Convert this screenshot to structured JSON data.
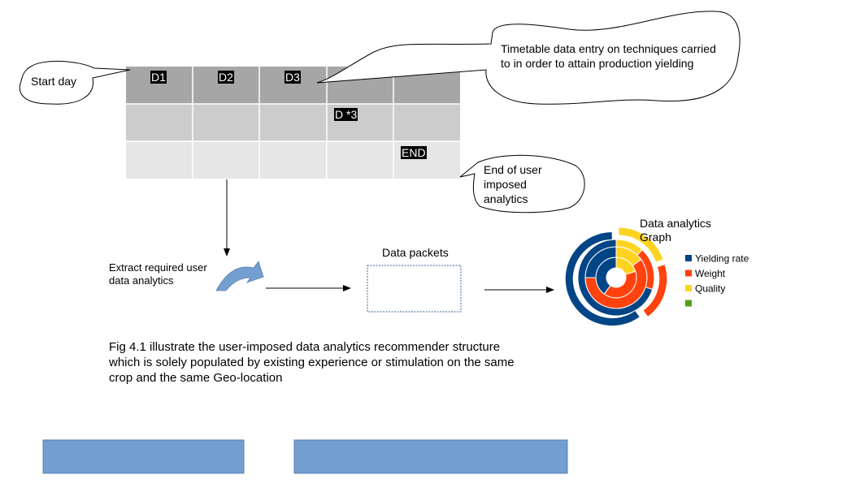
{
  "callouts": {
    "start_day": "Start day",
    "timetable": "Timetable data entry on techniques carried to in order to attain production yielding",
    "end_of_user": "End of user imposed analytics"
  },
  "timetable": {
    "cells": {
      "d1": "D1",
      "d2": "D2",
      "d3": "D3",
      "d_star_3": "D *3",
      "end": "END"
    },
    "row_colors": [
      "#a6a6a6",
      "#cccccc",
      "#e6e6e6"
    ]
  },
  "flow": {
    "extract_label": "Extract required user data analytics",
    "arrow_icon": "curved-arrow-icon",
    "packets_title": "Data packets",
    "graph_title": "Data analytics Graph"
  },
  "chart_data": {
    "type": "pie",
    "title": "Data analytics Graph",
    "series": [
      {
        "name": "Yielding rate",
        "color": "#004586"
      },
      {
        "name": "Weight",
        "color": "#ff420e"
      },
      {
        "name": "Quality",
        "color": "#ffd320"
      },
      {
        "name": "",
        "color": "#579d1c"
      }
    ],
    "rings": [
      {
        "slices": [
          {
            "series": "Quality",
            "value": 20
          },
          {
            "series": "Weight",
            "value": 40
          },
          {
            "series": "Yielding rate",
            "value": 40
          }
        ]
      },
      {
        "slices": [
          {
            "series": "Quality",
            "value": 15
          },
          {
            "series": "Weight",
            "value": 60
          },
          {
            "series": "Yielding rate",
            "value": 25
          }
        ]
      },
      {
        "slices": [
          {
            "series": "Quality",
            "value": 12
          },
          {
            "series": "Weight",
            "value": 18
          },
          {
            "series": "Yielding rate",
            "value": 70
          }
        ]
      },
      {
        "slices": [
          {
            "series": "Quality",
            "value": 20
          },
          {
            "series": "Weight",
            "value": 20
          },
          {
            "series": "Yielding rate",
            "value": 60
          }
        ]
      }
    ]
  },
  "caption": "Fig 4.1 illustrate the user-imposed data analytics recommender structure which is solely populated by existing experience or stimulation on the same crop and the same Geo-location",
  "footer": {
    "bar_color": "#729fcf"
  }
}
